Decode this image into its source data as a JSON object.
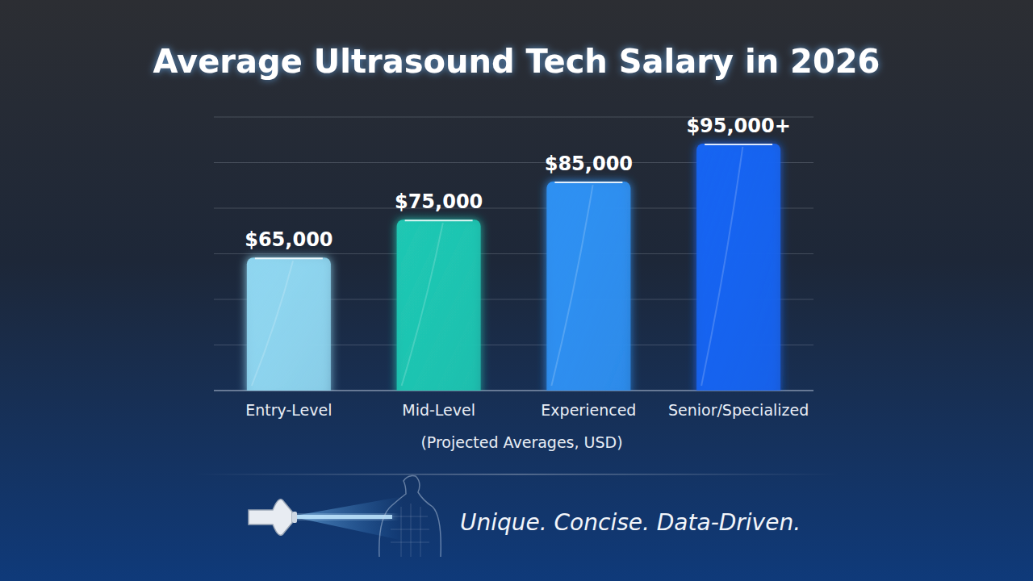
{
  "chart_data": {
    "type": "bar",
    "title": "Average Ultrasound Tech Salary in 2026",
    "categories": [
      "Entry-Level",
      "Mid-Level",
      "Experienced",
      "Senior/Specialized"
    ],
    "values": [
      65000,
      75000,
      85000,
      95000
    ],
    "value_labels": [
      "$65,000",
      "$75,000",
      "$85,000",
      "$95,000+"
    ],
    "colors": [
      "#8fd6f0",
      "#1fc7b3",
      "#2e90f2",
      "#1664f2"
    ],
    "xlabel": "(Projected Averages, USD)",
    "ylim": [
      30000,
      102000
    ],
    "yticks": [
      30000,
      42000,
      54000,
      66000,
      78000,
      90000,
      102000
    ],
    "grid": true,
    "data_labels": true,
    "tick_labels": "x",
    "annotations": [
      "Unique. Concise. Data-Driven."
    ]
  }
}
